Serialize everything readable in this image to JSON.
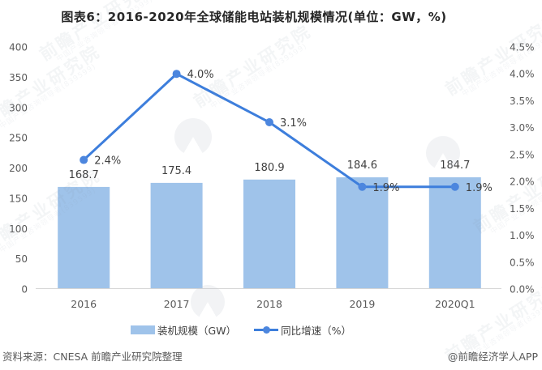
{
  "title": "图表6：2016-2020年全球储能电站装机规模情况(单位：GW，%)",
  "chart_data": {
    "type": "combo",
    "categories": [
      "2016",
      "2017",
      "2018",
      "2019",
      "2020Q1"
    ],
    "series": [
      {
        "name": "装机规模（GW）",
        "type": "bar",
        "axis": "left",
        "values": [
          168.7,
          175.4,
          180.9,
          184.6,
          184.7
        ],
        "labels": [
          "168.7",
          "175.4",
          "180.9",
          "184.6",
          "184.7"
        ]
      },
      {
        "name": "同比增速（%）",
        "type": "line",
        "axis": "right",
        "values": [
          2.4,
          4.0,
          3.1,
          1.9,
          1.9
        ],
        "labels": [
          "2.4%",
          "4.0%",
          "3.1%",
          "1.9%",
          "1.9%"
        ]
      }
    ],
    "left_axis": {
      "min": 0,
      "max": 400,
      "step": 50,
      "tick_labels": [
        "0",
        "50",
        "100",
        "150",
        "200",
        "250",
        "300",
        "350",
        "400"
      ]
    },
    "right_axis": {
      "min": 0,
      "max": 4.5,
      "step": 0.5,
      "tick_labels": [
        "0.0%",
        "0.5%",
        "1.0%",
        "1.5%",
        "2.0%",
        "2.5%",
        "3.0%",
        "3.5%",
        "4.0%",
        "4.5%"
      ]
    },
    "grid": false,
    "legend_position": "bottom",
    "title": "图表6：2016-2020年全球储能电站装机规模情况(单位：GW，%)"
  },
  "footer": {
    "source": "资料来源：CNESA 前瞻产业研究院整理",
    "credit": "@前瞻经济学人APP"
  },
  "watermark": {
    "brand": "前瞻产业研究院",
    "tagline": "中国产业咨询领导者(839599)"
  },
  "colors": {
    "bar": "#9fc3ea",
    "line": "#3d7edc",
    "marker": "#4c86de",
    "axis_text": "#595959",
    "label_text": "#3f3f3f",
    "axis_line": "#d6d6d6",
    "title_text": "#262626",
    "footer_text": "#595959",
    "watermark": "#8795a9"
  }
}
